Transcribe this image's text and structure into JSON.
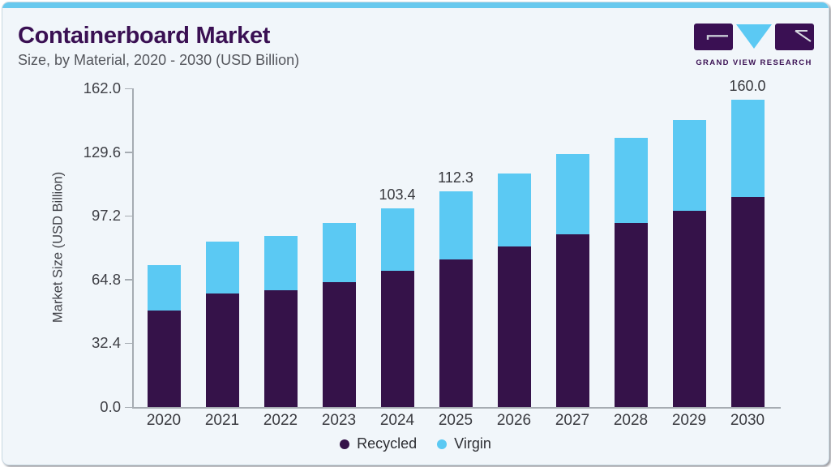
{
  "header": {
    "title": "Containerboard Market",
    "subtitle": "Size, by Material, 2020 - 2030 (USD Billion)"
  },
  "logo": {
    "text": "GRAND VIEW RESEARCH"
  },
  "colors": {
    "accent_bar": "#68C9EE",
    "title": "#3A1053",
    "recycled": "#351249",
    "virgin": "#5BC9F3",
    "card_background": "#F1F6FA"
  },
  "chart_data": {
    "type": "bar",
    "stacked": true,
    "title": "Containerboard Market Size, by Material, 2020 - 2030 (USD Billion)",
    "categories": [
      "2020",
      "2021",
      "2022",
      "2023",
      "2024",
      "2025",
      "2026",
      "2027",
      "2028",
      "2029",
      "2030"
    ],
    "series": [
      {
        "name": "Recycled",
        "color": "#351249",
        "values": [
          50.0,
          59.1,
          60.6,
          65.1,
          70.8,
          76.7,
          83.4,
          89.9,
          95.9,
          102.0,
          109.3
        ]
      },
      {
        "name": "Virgin",
        "color": "#5BC9F3",
        "values": [
          23.8,
          27.1,
          28.4,
          30.8,
          32.6,
          35.6,
          38.0,
          41.6,
          44.2,
          47.2,
          50.7
        ]
      }
    ],
    "totals": [
      73.8,
      86.2,
      89.0,
      95.9,
      103.4,
      112.3,
      121.4,
      131.5,
      140.1,
      149.2,
      160.0
    ],
    "value_labels": [
      {
        "category": "2024",
        "text": "103.4"
      },
      {
        "category": "2025",
        "text": "112.3"
      },
      {
        "category": "2030",
        "text": "160.0"
      }
    ],
    "xlabel": "",
    "ylabel": "Market Size (USD Billion)",
    "yticks": [
      {
        "value": 0,
        "label": "0.0"
      },
      {
        "value": 32.4,
        "label": "32.4"
      },
      {
        "value": 64.8,
        "label": "64.8"
      },
      {
        "value": 97.2,
        "label": "97.2"
      },
      {
        "value": 129.6,
        "label": "129.6"
      },
      {
        "value": 162,
        "label": "162.0"
      }
    ],
    "ylim": [
      0,
      162
    ],
    "grid": false,
    "legend_position": "bottom"
  }
}
